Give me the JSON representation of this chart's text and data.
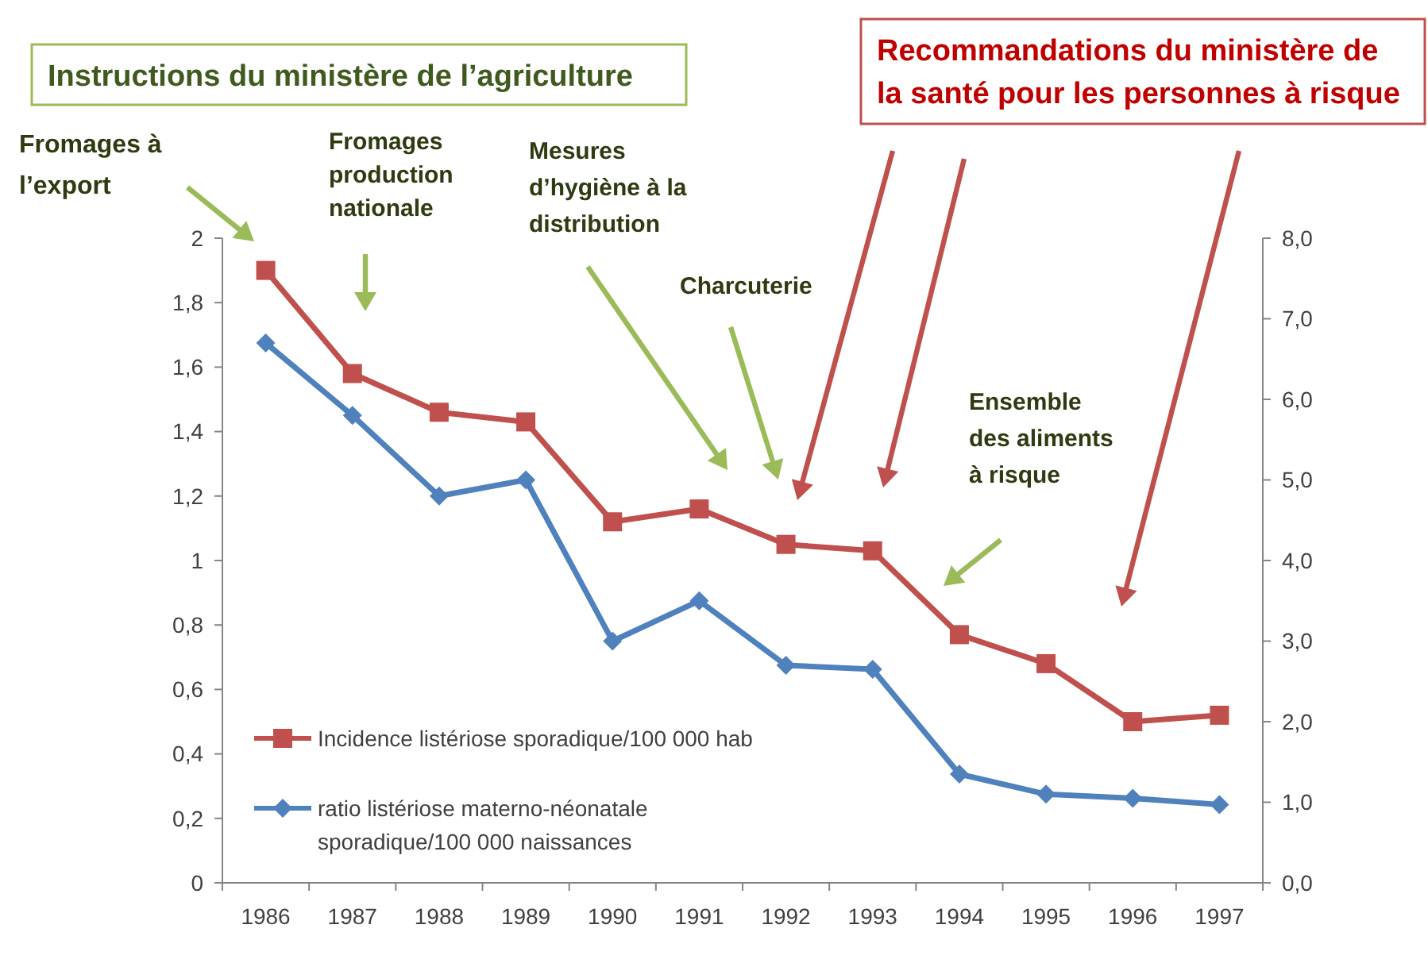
{
  "chart_data": {
    "type": "line",
    "categories": [
      "1986",
      "1987",
      "1988",
      "1989",
      "1990",
      "1991",
      "1992",
      "1993",
      "1994",
      "1995",
      "1996",
      "1997"
    ],
    "series": [
      {
        "name": "Incidence listériose sporadique/100 000 hab",
        "color": "#c0504d",
        "marker": "square",
        "values": [
          1.9,
          1.58,
          1.46,
          1.43,
          1.12,
          1.16,
          1.05,
          1.03,
          0.77,
          0.68,
          0.5,
          0.52
        ]
      },
      {
        "name": "ratio listériose materno-néonatale sporadique/100 000 naissances",
        "color": "#4f81bd",
        "marker": "diamond",
        "axis": "y2",
        "values": [
          6.7,
          5.8,
          4.8,
          5.0,
          3.0,
          3.5,
          2.7,
          2.65,
          1.35,
          1.1,
          1.05,
          0.97
        ]
      }
    ],
    "ylim": [
      0,
      2
    ],
    "yticks": [
      0,
      {
        "value": 0.2,
        "label": "0,2"
      },
      {
        "value": 0.4,
        "label": "0,4"
      },
      {
        "value": 0.6,
        "label": "0,6"
      },
      {
        "value": 0.8,
        "label": "0,8"
      },
      1,
      {
        "value": 1.2,
        "label": "1,2"
      },
      {
        "value": 1.4,
        "label": "1,4"
      },
      {
        "value": 1.6,
        "label": "1,6"
      },
      {
        "value": 1.8,
        "label": "1,8"
      },
      2
    ],
    "y2lim": [
      0,
      8
    ],
    "y2ticks": [
      {
        "value": 0,
        "label": "0,0"
      },
      {
        "value": 1,
        "label": "1,0"
      },
      {
        "value": 2,
        "label": "2,0"
      },
      {
        "value": 3,
        "label": "3,0"
      },
      {
        "value": 4,
        "label": "4,0"
      },
      {
        "value": 5,
        "label": "5,0"
      },
      {
        "value": 6,
        "label": "6,0"
      },
      {
        "value": 7,
        "label": "7,0"
      },
      {
        "value": 8,
        "label": "8,0"
      }
    ],
    "grid": false,
    "legend": "bottom left",
    "annotations": [
      "Instructions du ministère de l’agriculture",
      "Recommandations du ministère de\nla santé pour les personnes à risque",
      "Fromages à\nl’export",
      "Fromages\nproduction\nnationale",
      "Mesures\nd’hygiène à la\ndistribution",
      "Charcuterie",
      "Ensemble\ndes aliments\nà risque"
    ]
  }
}
